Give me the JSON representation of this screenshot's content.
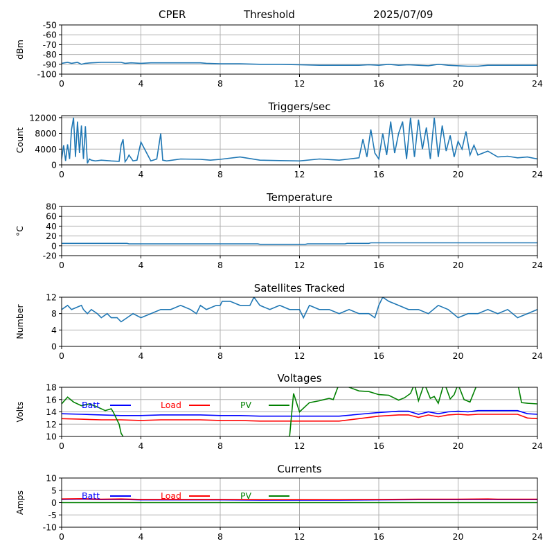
{
  "header": {
    "site": "CPER",
    "mode": "Threshold",
    "date": "2025/07/09"
  },
  "colors": {
    "series_default": "#1f77b4",
    "batt": "#0000ff",
    "load": "#ff0000",
    "pv": "#008000",
    "grid": "#b0b0b0"
  },
  "chart_data": [
    {
      "type": "line",
      "title": "",
      "ylabel": "dBm",
      "xlim": [
        0,
        24
      ],
      "ylim": [
        -100,
        -50
      ],
      "xticks": [
        "0",
        "4",
        "8",
        "12",
        "16",
        "20",
        "24"
      ],
      "yticks": [
        "-50",
        "-60",
        "-70",
        "-80",
        "-90",
        "-100"
      ],
      "ytick_values": [
        -50,
        -60,
        -70,
        -80,
        -90,
        -100
      ],
      "grid": true,
      "series": [
        {
          "x": [
            0,
            0.3,
            0.5,
            0.8,
            1.0,
            1.2,
            1.5,
            2,
            2.5,
            3,
            3.2,
            3.5,
            4,
            4.5,
            5,
            5.5,
            6,
            7,
            7.3,
            8,
            9,
            10,
            11,
            12,
            13,
            14,
            15,
            15.5,
            16,
            16.5,
            17,
            17.5,
            18,
            18.5,
            19,
            19.5,
            20,
            20.5,
            21,
            21.5,
            22,
            23,
            24
          ],
          "values": [
            -89,
            -88,
            -89,
            -88,
            -90,
            -89,
            -88.5,
            -88,
            -88,
            -88,
            -89,
            -88.5,
            -89,
            -88.5,
            -88.5,
            -88.5,
            -88.5,
            -88.5,
            -89,
            -89.5,
            -89.5,
            -90,
            -90,
            -90.5,
            -91,
            -91,
            -91,
            -90.5,
            -91,
            -90,
            -91,
            -90.5,
            -91,
            -91.5,
            -90,
            -91,
            -91.5,
            -92,
            -92,
            -91,
            -91,
            -91,
            -91
          ]
        }
      ]
    },
    {
      "type": "line",
      "title": "Triggers/sec",
      "ylabel": "Count",
      "xlim": [
        0,
        24
      ],
      "ylim": [
        0,
        12500
      ],
      "xticks": [
        "0",
        "4",
        "8",
        "12",
        "16",
        "20",
        "24"
      ],
      "yticks": [
        "12000",
        "8000",
        "4000",
        "0"
      ],
      "ytick_values": [
        12000,
        8000,
        4000,
        0
      ],
      "grid": true,
      "series": [
        {
          "x": [
            0,
            0.1,
            0.2,
            0.3,
            0.4,
            0.5,
            0.6,
            0.7,
            0.8,
            0.9,
            1.0,
            1.1,
            1.2,
            1.3,
            1.4,
            1.5,
            1.7,
            2.0,
            2.5,
            2.9,
            3.0,
            3.1,
            3.2,
            3.3,
            3.4,
            3.6,
            3.8,
            4.0,
            4.5,
            4.8,
            5.0,
            5.1,
            5.3,
            6,
            7,
            7.5,
            8,
            9,
            10,
            11,
            12,
            13,
            14,
            14.5,
            15,
            15.2,
            15.4,
            15.6,
            15.8,
            16,
            16.2,
            16.4,
            16.6,
            16.8,
            17.0,
            17.2,
            17.4,
            17.6,
            17.8,
            18.0,
            18.2,
            18.4,
            18.6,
            18.8,
            19.0,
            19.2,
            19.4,
            19.6,
            19.8,
            20.0,
            20.2,
            20.4,
            20.6,
            20.8,
            21.0,
            21.5,
            22,
            22.5,
            23,
            23.5,
            24
          ],
          "values": [
            1500,
            5000,
            1000,
            5200,
            1500,
            9000,
            12000,
            2000,
            11000,
            3000,
            10000,
            1500,
            9800,
            400,
            1500,
            1200,
            1000,
            1200,
            1000,
            900,
            5000,
            6500,
            800,
            1500,
            2500,
            1000,
            1200,
            5800,
            1000,
            1500,
            8000,
            1200,
            1000,
            1500,
            1400,
            1200,
            1400,
            2000,
            1200,
            1100,
            1000,
            1500,
            1200,
            1500,
            1800,
            6500,
            2000,
            9000,
            3000,
            1500,
            8000,
            2500,
            11000,
            3000,
            8000,
            11000,
            1500,
            12000,
            2000,
            11500,
            4000,
            9500,
            1500,
            12000,
            2000,
            10000,
            3500,
            7500,
            2000,
            6000,
            4000,
            8500,
            2500,
            5000,
            2500,
            3500,
            2000,
            2200,
            1800,
            2000,
            1500
          ]
        }
      ]
    },
    {
      "type": "line",
      "title": "Temperature",
      "ylabel": "°C",
      "xlim": [
        0,
        24
      ],
      "ylim": [
        -20,
        80
      ],
      "xticks": [
        "0",
        "4",
        "8",
        "12",
        "16",
        "20",
        "24"
      ],
      "yticks": [
        "80",
        "60",
        "40",
        "20",
        "0",
        "-20"
      ],
      "ytick_values": [
        80,
        60,
        40,
        20,
        0,
        -20
      ],
      "grid": true,
      "series": [
        {
          "x": [
            0,
            3.3,
            3.4,
            9.9,
            10,
            12.3,
            12.4,
            14.3,
            14.4,
            15.5,
            15.6,
            24
          ],
          "values": [
            5,
            5,
            4,
            4,
            3,
            3,
            4,
            4,
            5,
            5,
            6,
            6
          ]
        }
      ]
    },
    {
      "type": "line",
      "title": "Satellites Tracked",
      "ylabel": "Number",
      "xlim": [
        0,
        24
      ],
      "ylim": [
        0,
        12
      ],
      "xticks": [
        "0",
        "4",
        "8",
        "12",
        "16",
        "20",
        "24"
      ],
      "yticks": [
        "12",
        "8",
        "4",
        "0"
      ],
      "ytick_values": [
        12,
        8,
        4,
        0
      ],
      "grid": true,
      "series": [
        {
          "x": [
            0,
            0.3,
            0.5,
            1.0,
            1.1,
            1.3,
            1.5,
            1.8,
            2.0,
            2.3,
            2.5,
            2.8,
            3.0,
            3.3,
            3.6,
            4.0,
            4.5,
            5,
            5.5,
            6,
            6.5,
            6.8,
            7.0,
            7.3,
            7.8,
            8.0,
            8.1,
            8.5,
            9,
            9.5,
            9.7,
            10,
            10.5,
            11,
            11.5,
            12,
            12.2,
            12.5,
            13,
            13.5,
            14,
            14.5,
            15,
            15.5,
            15.8,
            16.0,
            16.2,
            16.5,
            17,
            17.5,
            18,
            18.5,
            19,
            19.5,
            20,
            20.5,
            21,
            21.5,
            22,
            22.5,
            23,
            23.5,
            24
          ],
          "values": [
            9,
            10,
            9,
            10,
            9,
            8,
            9,
            8,
            7,
            8,
            7,
            7,
            6,
            7,
            8,
            7,
            8,
            9,
            9,
            10,
            9,
            8,
            10,
            9,
            10,
            10,
            11,
            11,
            10,
            10,
            12,
            10,
            9,
            10,
            9,
            9,
            7,
            10,
            9,
            9,
            8,
            9,
            8,
            8,
            7,
            10,
            12,
            11,
            10,
            9,
            9,
            8,
            10,
            9,
            7,
            8,
            8,
            9,
            8,
            9,
            7,
            8,
            9
          ]
        }
      ]
    },
    {
      "type": "line",
      "title": "Voltages",
      "ylabel": "Volts",
      "xlim": [
        0,
        24
      ],
      "ylim": [
        10,
        18
      ],
      "xticks": [
        "0",
        "4",
        "8",
        "12",
        "16",
        "20",
        "24"
      ],
      "yticks": [
        "18",
        "16",
        "14",
        "12",
        "10"
      ],
      "ytick_values": [
        18,
        16,
        14,
        12,
        10
      ],
      "grid": true,
      "legend": [
        "Batt",
        "Load",
        "PV"
      ],
      "series": [
        {
          "name": "Batt",
          "color_key": "batt",
          "x": [
            0,
            1,
            2,
            3,
            4,
            5,
            6,
            7,
            8,
            9,
            10,
            11,
            12,
            13,
            14,
            15,
            16,
            17,
            17.5,
            18,
            18.5,
            19,
            19.5,
            20,
            20.5,
            21,
            22,
            23,
            23.5,
            24
          ],
          "values": [
            13.7,
            13.6,
            13.5,
            13.4,
            13.4,
            13.5,
            13.5,
            13.5,
            13.4,
            13.4,
            13.3,
            13.3,
            13.3,
            13.3,
            13.3,
            13.6,
            13.9,
            14.1,
            14.1,
            13.6,
            14.0,
            13.7,
            14.0,
            14.1,
            14.0,
            14.2,
            14.2,
            14.2,
            13.7,
            13.6
          ]
        },
        {
          "name": "Load",
          "color_key": "load",
          "x": [
            0,
            1,
            2,
            3,
            4,
            5,
            6,
            7,
            8,
            9,
            10,
            11,
            12,
            13,
            14,
            15,
            16,
            17,
            17.5,
            18,
            18.5,
            19,
            19.5,
            20,
            20.5,
            21,
            22,
            23,
            23.5,
            24
          ],
          "values": [
            12.9,
            12.8,
            12.7,
            12.7,
            12.6,
            12.7,
            12.7,
            12.7,
            12.6,
            12.6,
            12.5,
            12.5,
            12.5,
            12.5,
            12.5,
            12.9,
            13.3,
            13.5,
            13.5,
            13.1,
            13.5,
            13.2,
            13.5,
            13.6,
            13.5,
            13.6,
            13.6,
            13.6,
            13.0,
            12.9
          ]
        },
        {
          "name": "PV",
          "color_key": "pv",
          "x": [
            0,
            0.3,
            0.6,
            1.0,
            1.4,
            1.8,
            2.2,
            2.5,
            2.6,
            2.9,
            3.0,
            3.3,
            11.5,
            11.7,
            12.0,
            12.5,
            13.0,
            13.5,
            13.7,
            14.0,
            15.0,
            15.5,
            16.0,
            16.5,
            17.0,
            17.3,
            17.6,
            17.8,
            18.0,
            18.3,
            18.6,
            18.8,
            19.0,
            19.3,
            19.6,
            19.8,
            20.0,
            20.3,
            20.6,
            21.0,
            22.0,
            22.5,
            23.0,
            23.2,
            23.5,
            24.0
          ],
          "values": [
            15.3,
            16.4,
            15.6,
            15.0,
            15.3,
            14.8,
            14.2,
            14.5,
            14.0,
            12.0,
            10.5,
            9.0,
            10.0,
            17.0,
            14.0,
            15.5,
            15.8,
            16.2,
            16.0,
            18.6,
            17.4,
            17.3,
            16.8,
            16.7,
            15.9,
            16.3,
            17.0,
            18.5,
            15.8,
            18.6,
            16.2,
            16.5,
            15.4,
            18.8,
            16.1,
            16.8,
            18.5,
            16.0,
            15.6,
            18.8,
            18.8,
            19.0,
            18.8,
            15.5,
            15.4,
            15.3
          ]
        }
      ]
    },
    {
      "type": "line",
      "title": "Currents",
      "ylabel": "Amps",
      "xlim": [
        0,
        24
      ],
      "ylim": [
        -10,
        10
      ],
      "xticks": [
        "0",
        "4",
        "8",
        "12",
        "16",
        "20",
        "24"
      ],
      "yticks": [
        "10",
        "5",
        "0",
        "-5",
        "-10"
      ],
      "ytick_values": [
        10,
        5,
        0,
        -5,
        -10
      ],
      "grid": true,
      "legend": [
        "Batt",
        "Load",
        "PV"
      ],
      "series": [
        {
          "name": "Batt",
          "color_key": "batt",
          "x": [
            0,
            1,
            2,
            3,
            4,
            6,
            8,
            10,
            12,
            14,
            16,
            18,
            20,
            21.5,
            22,
            24
          ],
          "values": [
            1.3,
            1.4,
            1.2,
            1.3,
            1.1,
            1.1,
            1.1,
            1.0,
            1.0,
            1.0,
            1.1,
            1.2,
            1.2,
            1.3,
            1.2,
            1.2
          ]
        },
        {
          "name": "Load",
          "color_key": "load",
          "x": [
            0,
            1,
            2,
            3,
            4,
            6,
            8,
            10,
            12,
            14,
            16,
            18,
            20,
            21.5,
            22,
            24
          ],
          "values": [
            1.5,
            1.6,
            1.4,
            1.5,
            1.3,
            1.3,
            1.3,
            1.2,
            1.2,
            1.2,
            1.3,
            1.4,
            1.4,
            1.5,
            1.4,
            1.4
          ]
        },
        {
          "name": "PV",
          "color_key": "pv",
          "x": [
            0,
            24
          ],
          "values": [
            0,
            0
          ]
        }
      ]
    }
  ]
}
